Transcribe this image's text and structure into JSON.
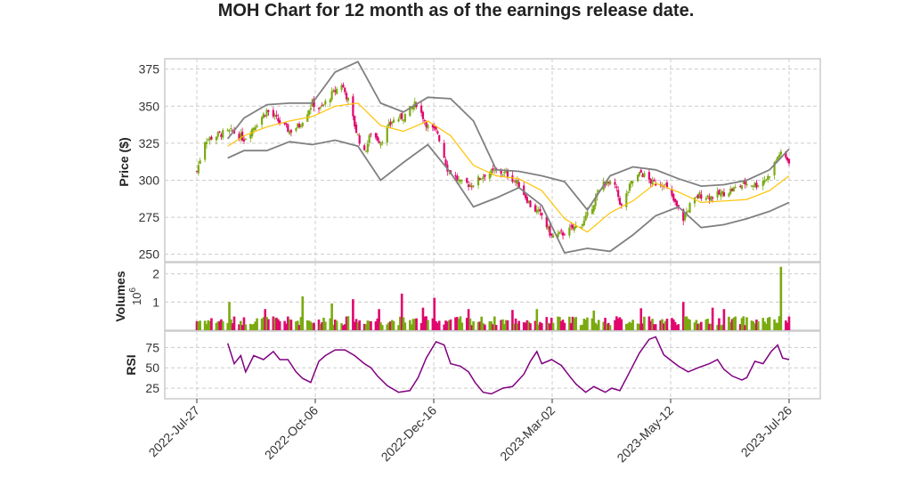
{
  "chart_data": {
    "type": "candlestick",
    "title": "MOH Chart for 12 month as of the earnings release date.",
    "colors": {
      "up": "#7aaa10",
      "down": "#e0066e",
      "ma": "#ffc200",
      "bands": "#808080",
      "rsi": "#800080"
    },
    "x_ticks": [
      "2022-Jul-27",
      "2022-Oct-06",
      "2022-Dec-16",
      "2023-Mar-02",
      "2023-May-12",
      "2023-Jul-26"
    ],
    "x_domain": [
      "2022-07-27",
      "2023-07-26"
    ],
    "price_panel": {
      "ylabel": "Price ($)",
      "ylim": [
        245,
        382
      ],
      "yticks": [
        250,
        275,
        300,
        325,
        350,
        375
      ],
      "close_path": [
        [
          "2022-07-27",
          306
        ],
        [
          "2022-08-01",
          327
        ],
        [
          "2022-08-10",
          331
        ],
        [
          "2022-08-18",
          333
        ],
        [
          "2022-08-25",
          328
        ],
        [
          "2022-08-31",
          336
        ],
        [
          "2022-09-08",
          347
        ],
        [
          "2022-09-15",
          340
        ],
        [
          "2022-09-22",
          333
        ],
        [
          "2022-09-28",
          337
        ],
        [
          "2022-10-06",
          352
        ],
        [
          "2022-10-11",
          348
        ],
        [
          "2022-10-18",
          358
        ],
        [
          "2022-10-24",
          365
        ],
        [
          "2022-10-28",
          354
        ],
        [
          "2022-11-02",
          333
        ],
        [
          "2022-11-07",
          318
        ],
        [
          "2022-11-11",
          332
        ],
        [
          "2022-11-17",
          326
        ],
        [
          "2022-11-24",
          340
        ],
        [
          "2022-12-01",
          343
        ],
        [
          "2022-12-09",
          352
        ],
        [
          "2022-12-16",
          336
        ],
        [
          "2022-12-22",
          332
        ],
        [
          "2022-12-28",
          308
        ],
        [
          "2023-01-05",
          298
        ],
        [
          "2023-01-12",
          297
        ],
        [
          "2023-01-20",
          304
        ],
        [
          "2023-01-27",
          306
        ],
        [
          "2023-02-03",
          304
        ],
        [
          "2023-02-10",
          297
        ],
        [
          "2023-02-17",
          283
        ],
        [
          "2023-02-24",
          276
        ],
        [
          "2023-03-02",
          262
        ],
        [
          "2023-03-09",
          264
        ],
        [
          "2023-03-16",
          268
        ],
        [
          "2023-03-22",
          272
        ],
        [
          "2023-03-28",
          285
        ],
        [
          "2023-04-03",
          299
        ],
        [
          "2023-04-10",
          296
        ],
        [
          "2023-04-14",
          282
        ],
        [
          "2023-04-20",
          298
        ],
        [
          "2023-04-26",
          305
        ],
        [
          "2023-05-03",
          298
        ],
        [
          "2023-05-10",
          298
        ],
        [
          "2023-05-16",
          286
        ],
        [
          "2023-05-22",
          274
        ],
        [
          "2023-05-26",
          283
        ],
        [
          "2023-06-01",
          290
        ],
        [
          "2023-06-08",
          289
        ],
        [
          "2023-06-15",
          291
        ],
        [
          "2023-06-22",
          294
        ],
        [
          "2023-06-29",
          298
        ],
        [
          "2023-07-06",
          297
        ],
        [
          "2023-07-13",
          302
        ],
        [
          "2023-07-20",
          318
        ],
        [
          "2023-07-26",
          313
        ]
      ],
      "ma_path": [
        [
          "2022-08-15",
          323
        ],
        [
          "2022-08-25",
          330
        ],
        [
          "2022-09-08",
          336
        ],
        [
          "2022-09-22",
          340
        ],
        [
          "2022-10-06",
          343
        ],
        [
          "2022-10-20",
          350
        ],
        [
          "2022-11-03",
          352
        ],
        [
          "2022-11-17",
          337
        ],
        [
          "2022-12-01",
          333
        ],
        [
          "2022-12-16",
          340
        ],
        [
          "2022-12-30",
          330
        ],
        [
          "2023-01-13",
          310
        ],
        [
          "2023-01-27",
          303
        ],
        [
          "2023-02-10",
          301
        ],
        [
          "2023-02-24",
          293
        ],
        [
          "2023-03-10",
          274
        ],
        [
          "2023-03-24",
          265
        ],
        [
          "2023-04-07",
          278
        ],
        [
          "2023-04-21",
          286
        ],
        [
          "2023-05-05",
          298
        ],
        [
          "2023-05-19",
          292
        ],
        [
          "2023-06-02",
          285
        ],
        [
          "2023-06-16",
          286
        ],
        [
          "2023-06-30",
          287
        ],
        [
          "2023-07-14",
          293
        ],
        [
          "2023-07-26",
          303
        ]
      ],
      "upper_band_path": [
        [
          "2022-08-15",
          328
        ],
        [
          "2022-08-25",
          342
        ],
        [
          "2022-09-08",
          351
        ],
        [
          "2022-09-22",
          352
        ],
        [
          "2022-10-06",
          352
        ],
        [
          "2022-10-20",
          373
        ],
        [
          "2022-11-03",
          380
        ],
        [
          "2022-11-17",
          352
        ],
        [
          "2022-12-01",
          346
        ],
        [
          "2022-12-16",
          356
        ],
        [
          "2022-12-30",
          355
        ],
        [
          "2023-01-13",
          340
        ],
        [
          "2023-01-27",
          307
        ],
        [
          "2023-02-10",
          306
        ],
        [
          "2023-02-24",
          303
        ],
        [
          "2023-03-10",
          299
        ],
        [
          "2023-03-24",
          280
        ],
        [
          "2023-04-07",
          303
        ],
        [
          "2023-04-21",
          309
        ],
        [
          "2023-05-05",
          307
        ],
        [
          "2023-05-19",
          301
        ],
        [
          "2023-06-02",
          296
        ],
        [
          "2023-06-16",
          297
        ],
        [
          "2023-06-30",
          300
        ],
        [
          "2023-07-14",
          307
        ],
        [
          "2023-07-26",
          321
        ]
      ],
      "lower_band_path": [
        [
          "2022-08-15",
          315
        ],
        [
          "2022-08-25",
          320
        ],
        [
          "2022-09-08",
          320
        ],
        [
          "2022-09-22",
          326
        ],
        [
          "2022-10-06",
          324
        ],
        [
          "2022-10-20",
          327
        ],
        [
          "2022-11-03",
          323
        ],
        [
          "2022-11-17",
          300
        ],
        [
          "2022-12-01",
          312
        ],
        [
          "2022-12-16",
          324
        ],
        [
          "2022-12-30",
          305
        ],
        [
          "2023-01-13",
          282
        ],
        [
          "2023-01-27",
          288
        ],
        [
          "2023-02-10",
          295
        ],
        [
          "2023-02-24",
          283
        ],
        [
          "2023-03-10",
          251
        ],
        [
          "2023-03-24",
          254
        ],
        [
          "2023-04-07",
          252
        ],
        [
          "2023-04-21",
          263
        ],
        [
          "2023-05-05",
          276
        ],
        [
          "2023-05-19",
          282
        ],
        [
          "2023-06-02",
          268
        ],
        [
          "2023-06-16",
          270
        ],
        [
          "2023-06-30",
          274
        ],
        [
          "2023-07-14",
          279
        ],
        [
          "2023-07-26",
          285
        ]
      ]
    },
    "volume_panel": {
      "ylabel": "Volumes",
      "multiplier_label": "10",
      "multiplier_exp": "6",
      "ylim": [
        0,
        2.4
      ],
      "yticks": [
        1,
        2
      ],
      "spikes": [
        [
          "2022-08-16",
          1.0
        ],
        [
          "2022-09-07",
          0.75
        ],
        [
          "2022-09-30",
          1.2
        ],
        [
          "2022-10-18",
          0.95
        ],
        [
          "2022-10-31",
          1.1
        ],
        [
          "2022-11-16",
          0.75
        ],
        [
          "2022-11-30",
          1.3
        ],
        [
          "2022-12-13",
          0.8
        ],
        [
          "2022-12-20",
          1.15
        ],
        [
          "2023-01-10",
          0.75
        ],
        [
          "2023-02-06",
          0.72
        ],
        [
          "2023-02-21",
          0.75
        ],
        [
          "2023-03-28",
          0.7
        ],
        [
          "2023-04-26",
          0.78
        ],
        [
          "2023-05-22",
          1.0
        ],
        [
          "2023-06-09",
          0.8
        ],
        [
          "2023-06-16",
          0.75
        ],
        [
          "2023-07-21",
          2.25
        ]
      ]
    },
    "rsi_panel": {
      "ylabel": "RSI",
      "ylim": [
        12,
        95
      ],
      "yticks": [
        25,
        50,
        75
      ],
      "path": [
        [
          "2022-08-15",
          80
        ],
        [
          "2022-08-19",
          55
        ],
        [
          "2022-08-23",
          65
        ],
        [
          "2022-08-26",
          45
        ],
        [
          "2022-08-31",
          65
        ],
        [
          "2022-09-06",
          60
        ],
        [
          "2022-09-12",
          70
        ],
        [
          "2022-09-16",
          60
        ],
        [
          "2022-09-21",
          60
        ],
        [
          "2022-09-26",
          45
        ],
        [
          "2022-09-30",
          37
        ],
        [
          "2022-10-05",
          32
        ],
        [
          "2022-10-10",
          58
        ],
        [
          "2022-10-14",
          65
        ],
        [
          "2022-10-20",
          72
        ],
        [
          "2022-10-26",
          72
        ],
        [
          "2022-11-01",
          65
        ],
        [
          "2022-11-07",
          55
        ],
        [
          "2022-11-11",
          50
        ],
        [
          "2022-11-15",
          40
        ],
        [
          "2022-11-21",
          28
        ],
        [
          "2022-11-28",
          20
        ],
        [
          "2022-12-05",
          22
        ],
        [
          "2022-12-10",
          38
        ],
        [
          "2022-12-15",
          62
        ],
        [
          "2022-12-21",
          82
        ],
        [
          "2022-12-26",
          78
        ],
        [
          "2022-12-30",
          55
        ],
        [
          "2023-01-05",
          52
        ],
        [
          "2023-01-10",
          45
        ],
        [
          "2023-01-14",
          32
        ],
        [
          "2023-01-19",
          20
        ],
        [
          "2023-01-24",
          18
        ],
        [
          "2023-01-31",
          25
        ],
        [
          "2023-02-06",
          27
        ],
        [
          "2023-02-13",
          42
        ],
        [
          "2023-02-17",
          58
        ],
        [
          "2023-02-21",
          70
        ],
        [
          "2023-02-24",
          55
        ],
        [
          "2023-03-02",
          60
        ],
        [
          "2023-03-08",
          53
        ],
        [
          "2023-03-13",
          40
        ],
        [
          "2023-03-17",
          30
        ],
        [
          "2023-03-23",
          20
        ],
        [
          "2023-03-28",
          27
        ],
        [
          "2023-04-04",
          20
        ],
        [
          "2023-04-08",
          25
        ],
        [
          "2023-04-13",
          22
        ],
        [
          "2023-04-19",
          45
        ],
        [
          "2023-04-25",
          68
        ],
        [
          "2023-05-01",
          85
        ],
        [
          "2023-05-05",
          88
        ],
        [
          "2023-05-10",
          66
        ],
        [
          "2023-05-15",
          58
        ],
        [
          "2023-05-19",
          52
        ],
        [
          "2023-05-25",
          45
        ],
        [
          "2023-05-31",
          50
        ],
        [
          "2023-06-07",
          55
        ],
        [
          "2023-06-12",
          60
        ],
        [
          "2023-06-16",
          48
        ],
        [
          "2023-06-21",
          40
        ],
        [
          "2023-06-27",
          35
        ],
        [
          "2023-06-30",
          38
        ],
        [
          "2023-07-05",
          58
        ],
        [
          "2023-07-10",
          55
        ],
        [
          "2023-07-15",
          70
        ],
        [
          "2023-07-19",
          78
        ],
        [
          "2023-07-22",
          62
        ],
        [
          "2023-07-26",
          60
        ]
      ]
    }
  }
}
